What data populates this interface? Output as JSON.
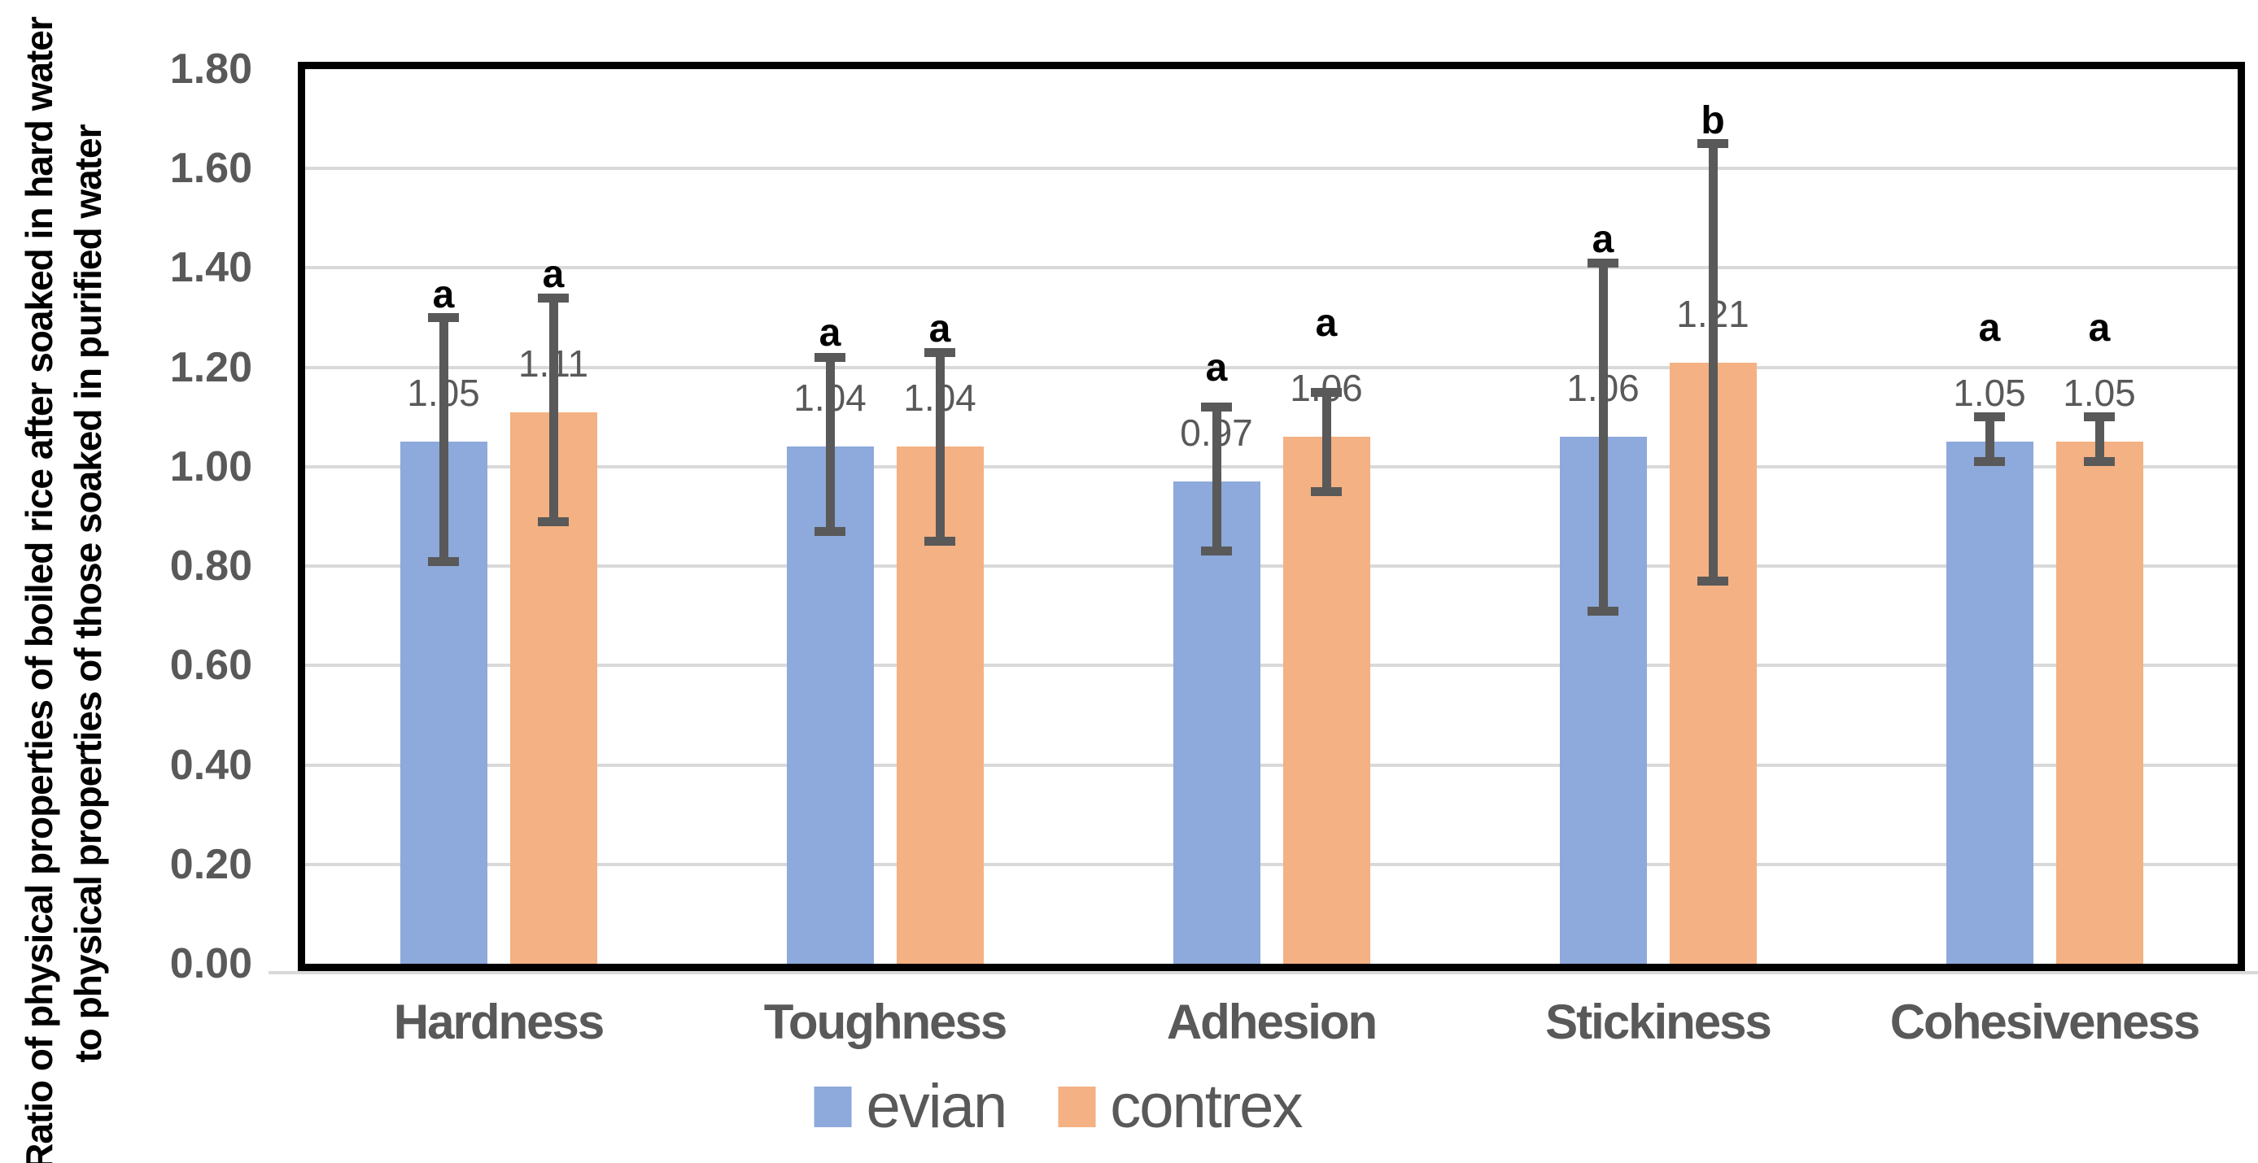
{
  "chart_data": {
    "type": "bar",
    "title": "",
    "categories": [
      "Hardness",
      "Toughness",
      "Adhesion",
      "Stickiness",
      "Cohesiveness"
    ],
    "series": [
      {
        "name": "evian",
        "color": "#8EA9DB",
        "values": [
          1.05,
          1.04,
          0.97,
          1.06,
          1.05
        ],
        "data_labels": [
          "1.05",
          "1.04",
          "0.97",
          "1.06",
          "1.05"
        ],
        "error_high": [
          1.3,
          1.22,
          1.12,
          1.41,
          1.1
        ],
        "error_low": [
          0.81,
          0.87,
          0.83,
          0.71,
          1.01
        ],
        "sig_letters": [
          "a",
          "a",
          "a",
          "a",
          "a"
        ]
      },
      {
        "name": "contrex",
        "color": "#F4B183",
        "values": [
          1.11,
          1.04,
          1.06,
          1.21,
          1.05
        ],
        "data_labels": [
          "1.11",
          "1.04",
          "1.06",
          "1.21",
          "1.05"
        ],
        "error_high": [
          1.34,
          1.23,
          1.15,
          1.65,
          1.1
        ],
        "error_low": [
          0.89,
          0.85,
          0.95,
          0.77,
          1.01
        ],
        "sig_letters": [
          "a",
          "a",
          "a",
          "b",
          "a"
        ]
      }
    ],
    "ylabel_line1": "Ratio of physical properties of boiled rice after soaked in hard water",
    "ylabel_line2": "to physical properties of those soaked in purified water",
    "xlabel": "",
    "ylim": [
      0.0,
      1.8
    ],
    "ytick_step": 0.2,
    "ytick_labels": [
      "0.00",
      "0.20",
      "0.40",
      "0.60",
      "0.80",
      "1.00",
      "1.20",
      "1.40",
      "1.60",
      "1.80"
    ],
    "grid": true,
    "legend_position": "bottom",
    "colors": {
      "evian": "#8EA9DB",
      "contrex": "#F4B183",
      "error_bar": "#595959",
      "gridline": "#D9D9D9",
      "tick_text": "#595959",
      "category_text": "#595959",
      "data_label_text": "#595959",
      "sig_letter_text": "#000000",
      "legend_text": "#595959",
      "plot_border": "#000000",
      "background": "#FFFFFF"
    }
  }
}
